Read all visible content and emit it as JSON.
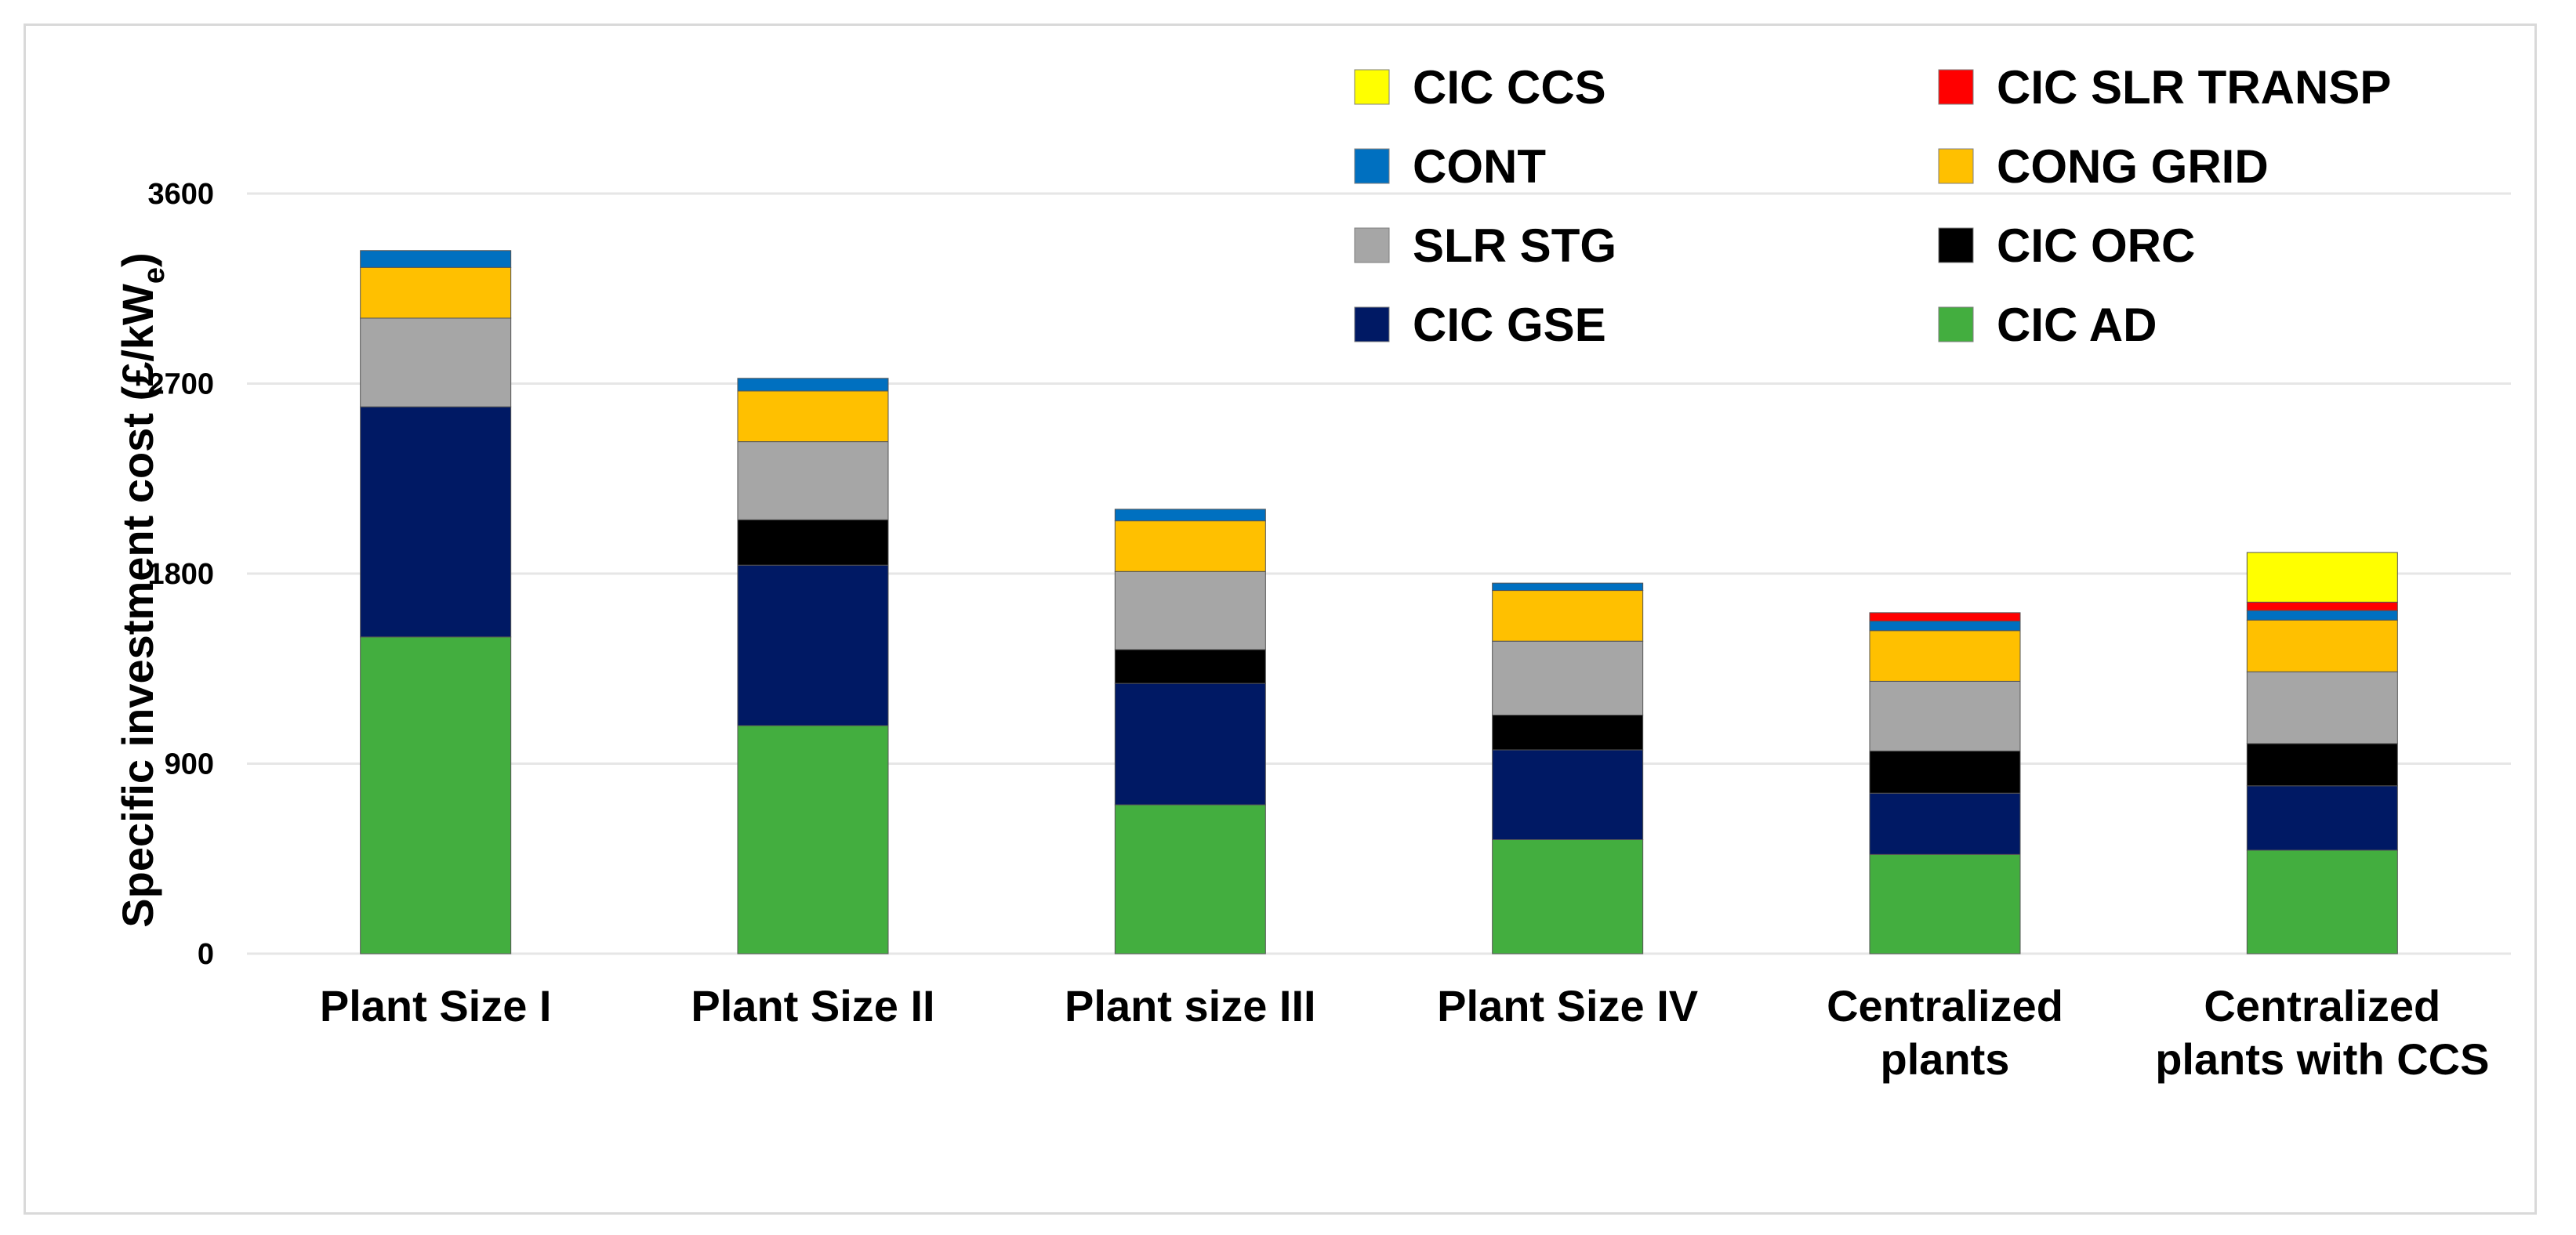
{
  "chart_data": {
    "type": "bar",
    "stacked": true,
    "title": "",
    "ylabel": "Specific investment cost (£/kW",
    "ylabel_subscript": "e",
    "ylabel_suffix": ")",
    "xlabel": "",
    "ylim": [
      0,
      3600
    ],
    "yticks": [
      0,
      900,
      1800,
      2700,
      3600
    ],
    "grid": true,
    "legend_position": "top-right",
    "categories": [
      [
        "Plant Size I"
      ],
      [
        "Plant Size II"
      ],
      [
        "Plant size III"
      ],
      [
        "Plant Size IV"
      ],
      [
        "Centralized",
        "plants"
      ],
      [
        "Centralized",
        "plants with CCS"
      ]
    ],
    "series": [
      {
        "name": "CIC AD",
        "color": "#43ae3f",
        "values": [
          1500,
          1080,
          705,
          540,
          470,
          490
        ]
      },
      {
        "name": "CIC GSE",
        "color": "#001964",
        "values": [
          1090,
          760,
          575,
          425,
          290,
          305
        ]
      },
      {
        "name": "CIC ORC",
        "color": "#000000",
        "values": [
          0,
          215,
          160,
          165,
          200,
          200
        ]
      },
      {
        "name": "SLR STG",
        "color": "#a6a6a6",
        "values": [
          420,
          370,
          370,
          350,
          330,
          340
        ]
      },
      {
        "name": "CONG GRID",
        "color": "#ffc000",
        "values": [
          240,
          240,
          240,
          240,
          240,
          245
        ]
      },
      {
        "name": "CONT",
        "color": "#0070c0",
        "values": [
          80,
          60,
          55,
          35,
          45,
          45
        ]
      },
      {
        "name": "CIC SLR TRANSP",
        "color": "#ff0000",
        "values": [
          0,
          0,
          0,
          0,
          40,
          40
        ]
      },
      {
        "name": "CIC CCS",
        "color": "#ffff00",
        "values": [
          0,
          0,
          0,
          0,
          0,
          235
        ]
      }
    ],
    "legend_order": [
      "CIC CCS",
      "CIC SLR TRANSP",
      "CONT",
      "CONG GRID",
      "SLR STG",
      "CIC ORC",
      "CIC GSE",
      "CIC AD"
    ]
  }
}
